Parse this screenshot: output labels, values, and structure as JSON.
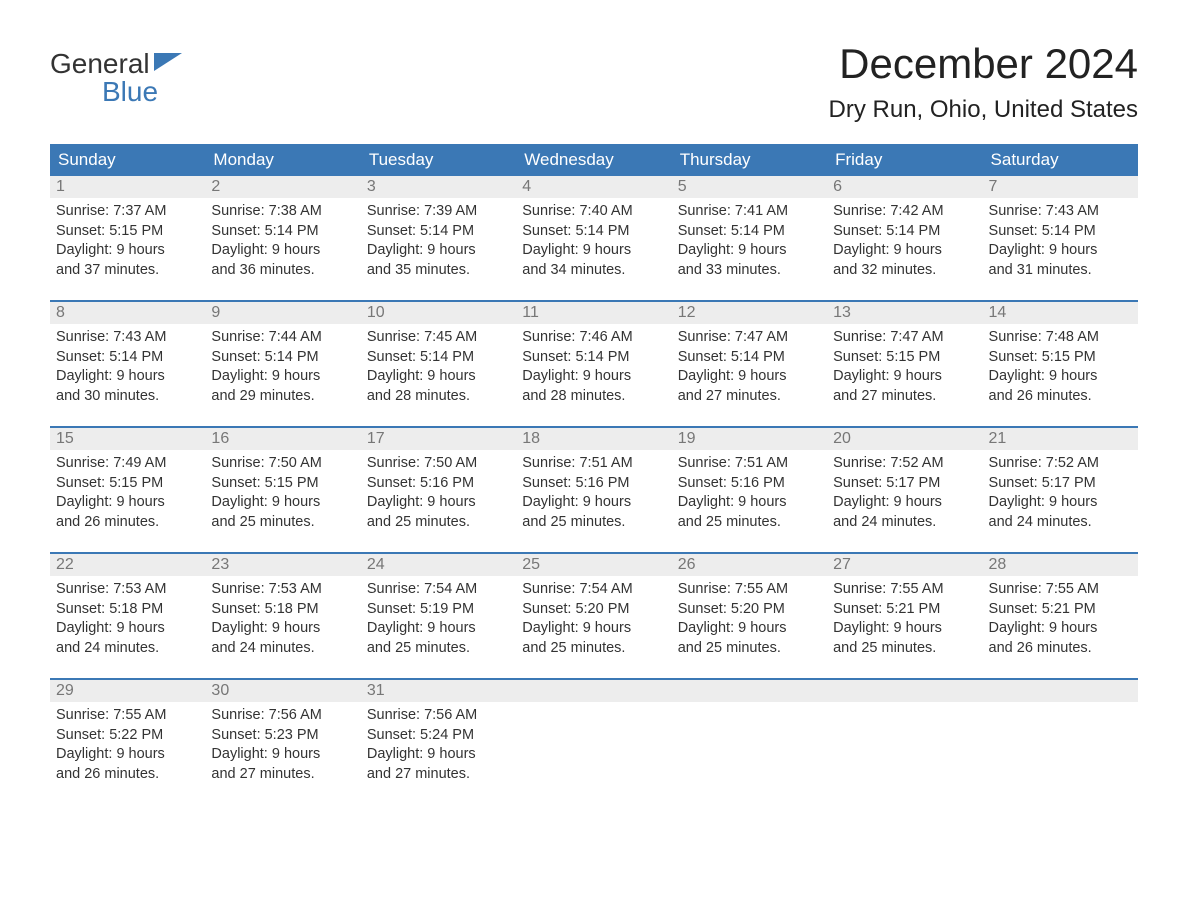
{
  "logo": {
    "part1": "General",
    "part2": "Blue"
  },
  "title": "December 2024",
  "location": "Dry Run, Ohio, United States",
  "colors": {
    "header_bg": "#3b78b5",
    "header_text": "#ffffff",
    "daynum_bg": "#ededed",
    "daynum_text": "#777777",
    "body_text": "#333333",
    "week_border": "#3b78b5",
    "logo_blue": "#3b78b5"
  },
  "weekdays": [
    "Sunday",
    "Monday",
    "Tuesday",
    "Wednesday",
    "Thursday",
    "Friday",
    "Saturday"
  ],
  "labels": {
    "sunrise": "Sunrise:",
    "sunset": "Sunset:",
    "daylight": "Daylight:"
  },
  "days": [
    {
      "num": "1",
      "sunrise": "7:37 AM",
      "sunset": "5:15 PM",
      "daylight1": "9 hours",
      "daylight2": "and 37 minutes."
    },
    {
      "num": "2",
      "sunrise": "7:38 AM",
      "sunset": "5:14 PM",
      "daylight1": "9 hours",
      "daylight2": "and 36 minutes."
    },
    {
      "num": "3",
      "sunrise": "7:39 AM",
      "sunset": "5:14 PM",
      "daylight1": "9 hours",
      "daylight2": "and 35 minutes."
    },
    {
      "num": "4",
      "sunrise": "7:40 AM",
      "sunset": "5:14 PM",
      "daylight1": "9 hours",
      "daylight2": "and 34 minutes."
    },
    {
      "num": "5",
      "sunrise": "7:41 AM",
      "sunset": "5:14 PM",
      "daylight1": "9 hours",
      "daylight2": "and 33 minutes."
    },
    {
      "num": "6",
      "sunrise": "7:42 AM",
      "sunset": "5:14 PM",
      "daylight1": "9 hours",
      "daylight2": "and 32 minutes."
    },
    {
      "num": "7",
      "sunrise": "7:43 AM",
      "sunset": "5:14 PM",
      "daylight1": "9 hours",
      "daylight2": "and 31 minutes."
    },
    {
      "num": "8",
      "sunrise": "7:43 AM",
      "sunset": "5:14 PM",
      "daylight1": "9 hours",
      "daylight2": "and 30 minutes."
    },
    {
      "num": "9",
      "sunrise": "7:44 AM",
      "sunset": "5:14 PM",
      "daylight1": "9 hours",
      "daylight2": "and 29 minutes."
    },
    {
      "num": "10",
      "sunrise": "7:45 AM",
      "sunset": "5:14 PM",
      "daylight1": "9 hours",
      "daylight2": "and 28 minutes."
    },
    {
      "num": "11",
      "sunrise": "7:46 AM",
      "sunset": "5:14 PM",
      "daylight1": "9 hours",
      "daylight2": "and 28 minutes."
    },
    {
      "num": "12",
      "sunrise": "7:47 AM",
      "sunset": "5:14 PM",
      "daylight1": "9 hours",
      "daylight2": "and 27 minutes."
    },
    {
      "num": "13",
      "sunrise": "7:47 AM",
      "sunset": "5:15 PM",
      "daylight1": "9 hours",
      "daylight2": "and 27 minutes."
    },
    {
      "num": "14",
      "sunrise": "7:48 AM",
      "sunset": "5:15 PM",
      "daylight1": "9 hours",
      "daylight2": "and 26 minutes."
    },
    {
      "num": "15",
      "sunrise": "7:49 AM",
      "sunset": "5:15 PM",
      "daylight1": "9 hours",
      "daylight2": "and 26 minutes."
    },
    {
      "num": "16",
      "sunrise": "7:50 AM",
      "sunset": "5:15 PM",
      "daylight1": "9 hours",
      "daylight2": "and 25 minutes."
    },
    {
      "num": "17",
      "sunrise": "7:50 AM",
      "sunset": "5:16 PM",
      "daylight1": "9 hours",
      "daylight2": "and 25 minutes."
    },
    {
      "num": "18",
      "sunrise": "7:51 AM",
      "sunset": "5:16 PM",
      "daylight1": "9 hours",
      "daylight2": "and 25 minutes."
    },
    {
      "num": "19",
      "sunrise": "7:51 AM",
      "sunset": "5:16 PM",
      "daylight1": "9 hours",
      "daylight2": "and 25 minutes."
    },
    {
      "num": "20",
      "sunrise": "7:52 AM",
      "sunset": "5:17 PM",
      "daylight1": "9 hours",
      "daylight2": "and 24 minutes."
    },
    {
      "num": "21",
      "sunrise": "7:52 AM",
      "sunset": "5:17 PM",
      "daylight1": "9 hours",
      "daylight2": "and 24 minutes."
    },
    {
      "num": "22",
      "sunrise": "7:53 AM",
      "sunset": "5:18 PM",
      "daylight1": "9 hours",
      "daylight2": "and 24 minutes."
    },
    {
      "num": "23",
      "sunrise": "7:53 AM",
      "sunset": "5:18 PM",
      "daylight1": "9 hours",
      "daylight2": "and 24 minutes."
    },
    {
      "num": "24",
      "sunrise": "7:54 AM",
      "sunset": "5:19 PM",
      "daylight1": "9 hours",
      "daylight2": "and 25 minutes."
    },
    {
      "num": "25",
      "sunrise": "7:54 AM",
      "sunset": "5:20 PM",
      "daylight1": "9 hours",
      "daylight2": "and 25 minutes."
    },
    {
      "num": "26",
      "sunrise": "7:55 AM",
      "sunset": "5:20 PM",
      "daylight1": "9 hours",
      "daylight2": "and 25 minutes."
    },
    {
      "num": "27",
      "sunrise": "7:55 AM",
      "sunset": "5:21 PM",
      "daylight1": "9 hours",
      "daylight2": "and 25 minutes."
    },
    {
      "num": "28",
      "sunrise": "7:55 AM",
      "sunset": "5:21 PM",
      "daylight1": "9 hours",
      "daylight2": "and 26 minutes."
    },
    {
      "num": "29",
      "sunrise": "7:55 AM",
      "sunset": "5:22 PM",
      "daylight1": "9 hours",
      "daylight2": "and 26 minutes."
    },
    {
      "num": "30",
      "sunrise": "7:56 AM",
      "sunset": "5:23 PM",
      "daylight1": "9 hours",
      "daylight2": "and 27 minutes."
    },
    {
      "num": "31",
      "sunrise": "7:56 AM",
      "sunset": "5:24 PM",
      "daylight1": "9 hours",
      "daylight2": "and 27 minutes."
    }
  ]
}
